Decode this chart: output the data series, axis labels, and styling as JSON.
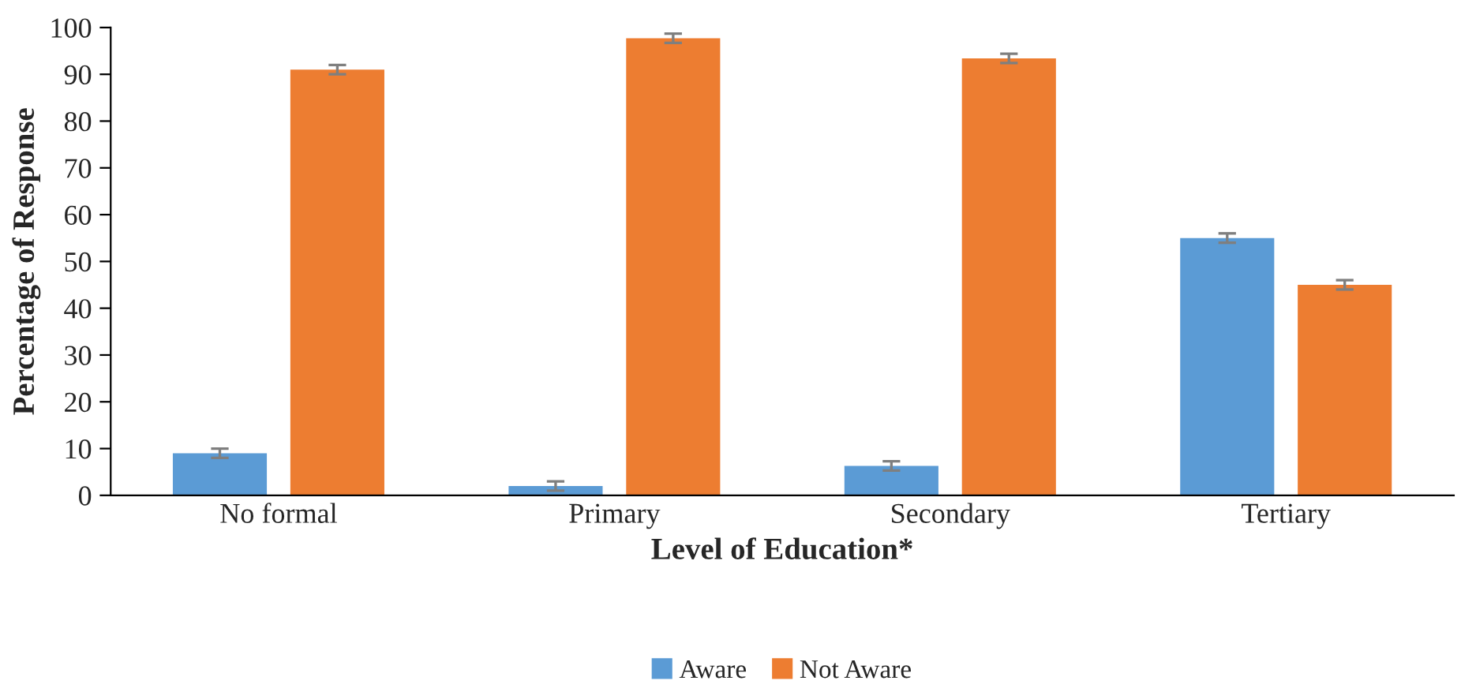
{
  "chart_data": {
    "type": "bar",
    "xlabel": "Level of Education*",
    "ylabel": "Percentage of Response",
    "categories": [
      "No formal",
      "Primary",
      "Secondary",
      "Tertiary"
    ],
    "series": [
      {
        "name": "Aware",
        "color": "#5b9bd5",
        "values": [
          9,
          2,
          6.3,
          55
        ],
        "errors": [
          1,
          1,
          1,
          1
        ]
      },
      {
        "name": "Not Aware",
        "color": "#ed7d31",
        "values": [
          91,
          97.7,
          93.4,
          45
        ],
        "errors": [
          1,
          1,
          1,
          1
        ]
      }
    ],
    "ylim": [
      0,
      100
    ],
    "yticks": [
      0,
      10,
      20,
      30,
      40,
      50,
      60,
      70,
      80,
      90,
      100
    ],
    "grid": false,
    "legend": "bottom"
  }
}
